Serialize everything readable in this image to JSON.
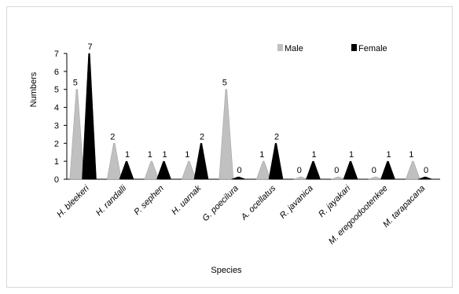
{
  "chart_data": {
    "type": "bar",
    "mark_shape": "cone",
    "categories": [
      "H. bleekeri",
      "H. randalli",
      "P. sephen",
      "H. uarnak",
      "G. poecilura",
      "A. ocellatus",
      "R. javanica",
      "R. jayakari",
      "M. eregoodootenkee",
      "M. tarapacana"
    ],
    "series": [
      {
        "name": "Male",
        "color": "#c0c0c0",
        "values": [
          5,
          2,
          1,
          1,
          5,
          1,
          0,
          0,
          0,
          1
        ]
      },
      {
        "name": "Female",
        "color": "#000000",
        "values": [
          7,
          1,
          1,
          2,
          0,
          2,
          1,
          1,
          1,
          0
        ]
      }
    ],
    "data_labels": [
      [
        "5",
        "2",
        "1",
        "1",
        "5",
        "1",
        "0",
        "0",
        "0",
        "1"
      ],
      [
        "7",
        "1",
        "1",
        "2",
        "0",
        "2",
        "1",
        "1",
        "1",
        "0"
      ]
    ],
    "xlabel": "Species",
    "ylabel": "Numbers",
    "ylim": [
      0,
      7
    ],
    "yticks": [
      "0",
      "1",
      "2",
      "3",
      "4",
      "5",
      "6",
      "7"
    ],
    "legend_position": "top-right",
    "grid": false
  }
}
